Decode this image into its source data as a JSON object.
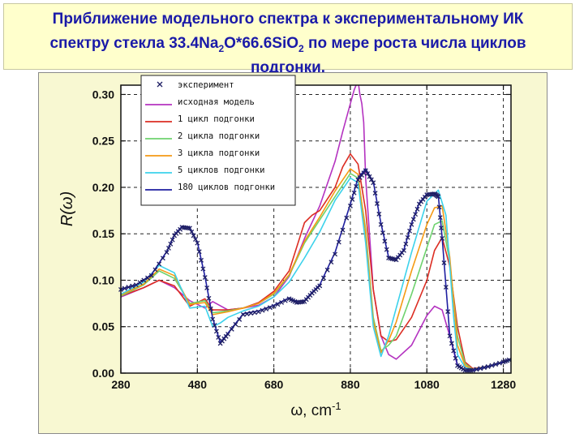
{
  "title": {
    "parts": [
      {
        "t": "Приближение модельного спектра к экспериментальному ИК"
      },
      {
        "br": true
      },
      {
        "t": "спектру стекла 33.4Na"
      },
      {
        "sub": "2"
      },
      {
        "t": "O*66.6SiO"
      },
      {
        "sub": "2"
      },
      {
        "t": " по мере роста числа циклов"
      },
      {
        "br": true
      },
      {
        "t": "подгонки."
      }
    ]
  },
  "colors": {
    "title_text": "#1a1aa8",
    "title_bg": "#ffffcc",
    "figure_bg": "#f8f8d2",
    "experiment": "#1e1e64",
    "model": "#b432c0",
    "c1": "#dc2d23",
    "c2": "#6ed26e",
    "c3": "#f59a14",
    "c5": "#3cd2eb",
    "c180": "#1e1ea0"
  },
  "chart_data": {
    "type": "line",
    "xlabel": "ω, cm",
    "xlabel_sup": "-1",
    "ylabel": "R(ω)",
    "xlim": [
      280,
      1300
    ],
    "ylim": [
      0.0,
      0.31
    ],
    "xticks": [
      280,
      480,
      680,
      880,
      1080,
      1280
    ],
    "yticks": [
      0.0,
      0.05,
      0.1,
      0.15,
      0.2,
      0.25,
      0.3
    ],
    "ytick_labels": [
      "0.00",
      "0.05",
      "0.10",
      "0.15",
      "0.20",
      "0.25",
      "0.30"
    ],
    "grid": true,
    "legend_position": "top-left",
    "series": [
      {
        "name": "эксперимент",
        "color_key": "experiment",
        "marker": "x",
        "x": [
          280,
          320,
          360,
          400,
          420,
          440,
          460,
          480,
          500,
          520,
          540,
          560,
          600,
          640,
          680,
          720,
          740,
          760,
          780,
          800,
          840,
          880,
          900,
          920,
          940,
          960,
          980,
          1000,
          1020,
          1040,
          1060,
          1080,
          1100,
          1110,
          1120,
          1140,
          1160,
          1180,
          1200,
          1240,
          1280,
          1300
        ],
        "y": [
          0.09,
          0.095,
          0.105,
          0.13,
          0.148,
          0.157,
          0.156,
          0.14,
          0.103,
          0.058,
          0.032,
          0.042,
          0.063,
          0.066,
          0.072,
          0.08,
          0.076,
          0.077,
          0.086,
          0.094,
          0.128,
          0.18,
          0.208,
          0.218,
          0.205,
          0.16,
          0.124,
          0.122,
          0.132,
          0.16,
          0.182,
          0.192,
          0.193,
          0.19,
          0.145,
          0.04,
          0.008,
          0.003,
          0.003,
          0.007,
          0.012,
          0.015
        ]
      },
      {
        "name": "исходная модель",
        "color_key": "model",
        "x": [
          280,
          340,
          380,
          420,
          460,
          500,
          520,
          560,
          600,
          640,
          680,
          720,
          760,
          800,
          840,
          860,
          880,
          890,
          900,
          905,
          910,
          915,
          920,
          940,
          960,
          980,
          1000,
          1040,
          1080,
          1100,
          1120,
          1140,
          1160,
          1180,
          1200,
          1240,
          1280,
          1300
        ],
        "y": [
          0.082,
          0.092,
          0.1,
          0.092,
          0.078,
          0.07,
          0.077,
          0.068,
          0.07,
          0.073,
          0.082,
          0.104,
          0.145,
          0.18,
          0.228,
          0.26,
          0.29,
          0.305,
          0.315,
          0.3,
          0.29,
          0.27,
          0.21,
          0.09,
          0.04,
          0.02,
          0.015,
          0.03,
          0.062,
          0.072,
          0.068,
          0.04,
          0.008,
          0.003,
          0.003,
          0.007,
          0.012,
          0.014
        ]
      },
      {
        "name": "1 цикл подгонки",
        "color_key": "c1",
        "x": [
          280,
          340,
          380,
          420,
          460,
          500,
          520,
          560,
          600,
          640,
          680,
          720,
          760,
          780,
          800,
          840,
          860,
          880,
          900,
          920,
          940,
          960,
          980,
          1000,
          1040,
          1080,
          1100,
          1120,
          1140,
          1160,
          1180,
          1200,
          1240,
          1280,
          1300
        ],
        "y": [
          0.083,
          0.092,
          0.1,
          0.094,
          0.072,
          0.08,
          0.068,
          0.068,
          0.07,
          0.076,
          0.088,
          0.11,
          0.162,
          0.17,
          0.175,
          0.2,
          0.222,
          0.236,
          0.225,
          0.175,
          0.09,
          0.04,
          0.034,
          0.036,
          0.06,
          0.1,
          0.132,
          0.146,
          0.115,
          0.05,
          0.012,
          0.005,
          0.007,
          0.012,
          0.014
        ]
      },
      {
        "name": "2 цикла подгонки",
        "color_key": "c2",
        "x": [
          280,
          340,
          380,
          420,
          460,
          500,
          520,
          560,
          600,
          640,
          680,
          720,
          760,
          800,
          840,
          880,
          900,
          920,
          940,
          960,
          980,
          1000,
          1040,
          1080,
          1100,
          1120,
          1140,
          1160,
          1180,
          1200,
          1240,
          1280,
          1300
        ],
        "y": [
          0.083,
          0.095,
          0.11,
          0.102,
          0.075,
          0.078,
          0.065,
          0.067,
          0.07,
          0.075,
          0.085,
          0.105,
          0.14,
          0.165,
          0.19,
          0.215,
          0.21,
          0.155,
          0.06,
          0.024,
          0.03,
          0.04,
          0.085,
          0.135,
          0.16,
          0.164,
          0.12,
          0.04,
          0.01,
          0.004,
          0.007,
          0.012,
          0.014
        ]
      },
      {
        "name": "3 цикла подгонки",
        "color_key": "c3",
        "x": [
          280,
          340,
          380,
          420,
          460,
          500,
          520,
          560,
          600,
          640,
          680,
          720,
          760,
          800,
          840,
          880,
          900,
          920,
          940,
          960,
          980,
          1000,
          1040,
          1080,
          1100,
          1120,
          1140,
          1160,
          1180,
          1200,
          1240,
          1280,
          1300
        ],
        "y": [
          0.084,
          0.096,
          0.112,
          0.105,
          0.074,
          0.076,
          0.063,
          0.066,
          0.07,
          0.075,
          0.086,
          0.106,
          0.142,
          0.168,
          0.196,
          0.22,
          0.214,
          0.15,
          0.056,
          0.022,
          0.035,
          0.055,
          0.11,
          0.16,
          0.178,
          0.18,
          0.125,
          0.03,
          0.008,
          0.004,
          0.007,
          0.012,
          0.014
        ]
      },
      {
        "name": "5 циклов подгонки",
        "color_key": "c5",
        "x": [
          280,
          340,
          380,
          420,
          460,
          500,
          520,
          540,
          560,
          600,
          640,
          680,
          720,
          760,
          800,
          840,
          880,
          900,
          920,
          940,
          960,
          980,
          1000,
          1040,
          1080,
          1110,
          1130,
          1150,
          1160,
          1180,
          1200,
          1240,
          1280,
          1300
        ],
        "y": [
          0.085,
          0.098,
          0.116,
          0.108,
          0.07,
          0.072,
          0.05,
          0.054,
          0.06,
          0.067,
          0.072,
          0.082,
          0.098,
          0.124,
          0.152,
          0.186,
          0.21,
          0.205,
          0.14,
          0.05,
          0.018,
          0.04,
          0.07,
          0.13,
          0.185,
          0.197,
          0.17,
          0.06,
          0.02,
          0.006,
          0.004,
          0.007,
          0.012,
          0.014
        ]
      },
      {
        "name": "180 циклов подгонки",
        "color_key": "c180",
        "x": [
          280,
          320,
          360,
          400,
          420,
          440,
          460,
          480,
          500,
          520,
          540,
          560,
          600,
          640,
          680,
          720,
          740,
          760,
          780,
          800,
          840,
          880,
          900,
          920,
          940,
          960,
          980,
          1000,
          1020,
          1040,
          1060,
          1080,
          1100,
          1110,
          1120,
          1140,
          1160,
          1180,
          1200,
          1240,
          1280,
          1300
        ],
        "y": [
          0.09,
          0.095,
          0.106,
          0.131,
          0.149,
          0.158,
          0.157,
          0.141,
          0.104,
          0.059,
          0.033,
          0.043,
          0.064,
          0.067,
          0.073,
          0.081,
          0.077,
          0.078,
          0.087,
          0.095,
          0.13,
          0.182,
          0.21,
          0.22,
          0.206,
          0.161,
          0.125,
          0.123,
          0.133,
          0.161,
          0.183,
          0.193,
          0.194,
          0.191,
          0.146,
          0.041,
          0.009,
          0.003,
          0.003,
          0.007,
          0.012,
          0.015
        ]
      }
    ]
  }
}
